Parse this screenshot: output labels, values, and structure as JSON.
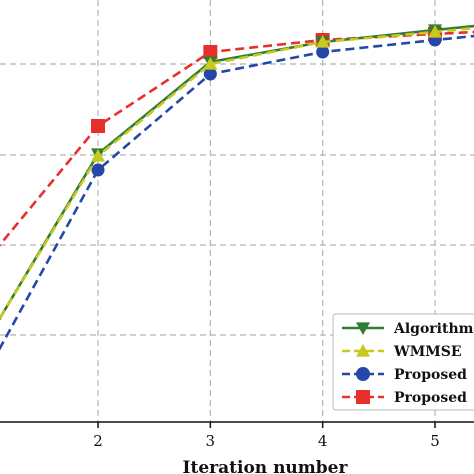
{
  "chart_data": {
    "type": "line",
    "xlabel": "Iteration number",
    "xlim": [
      1,
      5.35
    ],
    "ylim": [
      0,
      1
    ],
    "x_ticks": [
      "2",
      "3",
      "4",
      "5"
    ],
    "grid": true,
    "legend_position": "bottom-right",
    "series": [
      {
        "name": "Algorithm",
        "color": "#2e7d32",
        "style": "solid",
        "marker": "triangle-down",
        "x": [
          1,
          2,
          3,
          4,
          5,
          5.35
        ],
        "y": [
          0.2,
          0.67,
          0.9,
          0.95,
          0.98,
          0.99
        ]
      },
      {
        "name": "WMMSE",
        "color": "#c8c81e",
        "style": "dashed",
        "marker": "triangle-up",
        "x": [
          1,
          2,
          3,
          4,
          5,
          5.35
        ],
        "y": [
          0.2,
          0.665,
          0.895,
          0.95,
          0.975,
          0.985
        ]
      },
      {
        "name": "Proposed",
        "color": "#2548a8",
        "style": "dashed",
        "marker": "circle",
        "x": [
          1,
          2,
          3,
          4,
          5,
          5.35
        ],
        "y": [
          0.12,
          0.63,
          0.87,
          0.925,
          0.955,
          0.965
        ]
      },
      {
        "name": "Proposed",
        "color": "#e8302a",
        "style": "dashed",
        "marker": "square",
        "x": [
          1,
          2,
          3,
          4,
          5,
          5.35
        ],
        "y": [
          0.4,
          0.74,
          0.925,
          0.955,
          0.97,
          0.975
        ]
      }
    ]
  }
}
